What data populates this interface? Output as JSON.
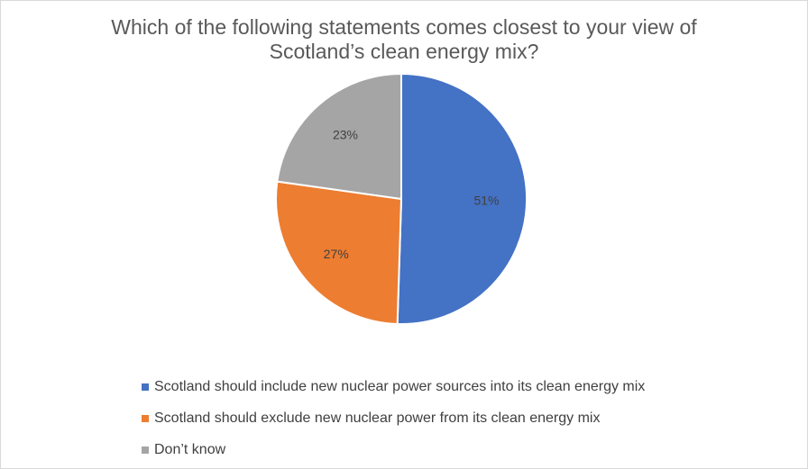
{
  "chart_data": {
    "type": "pie",
    "title_lines": [
      "Which of the following statements comes closest to your view of",
      "Scotland’s clean energy mix?"
    ],
    "categories": [
      "Scotland should include new nuclear power sources into its clean energy mix",
      "Scotland should exclude new nuclear power from its clean energy mix",
      "Don’t know"
    ],
    "values": [
      51,
      27,
      23
    ],
    "data_labels": [
      "51%",
      "27%",
      "23%"
    ],
    "colors": [
      "#4472c4",
      "#ed7d31",
      "#a5a5a5"
    ],
    "legend_position": "bottom"
  }
}
